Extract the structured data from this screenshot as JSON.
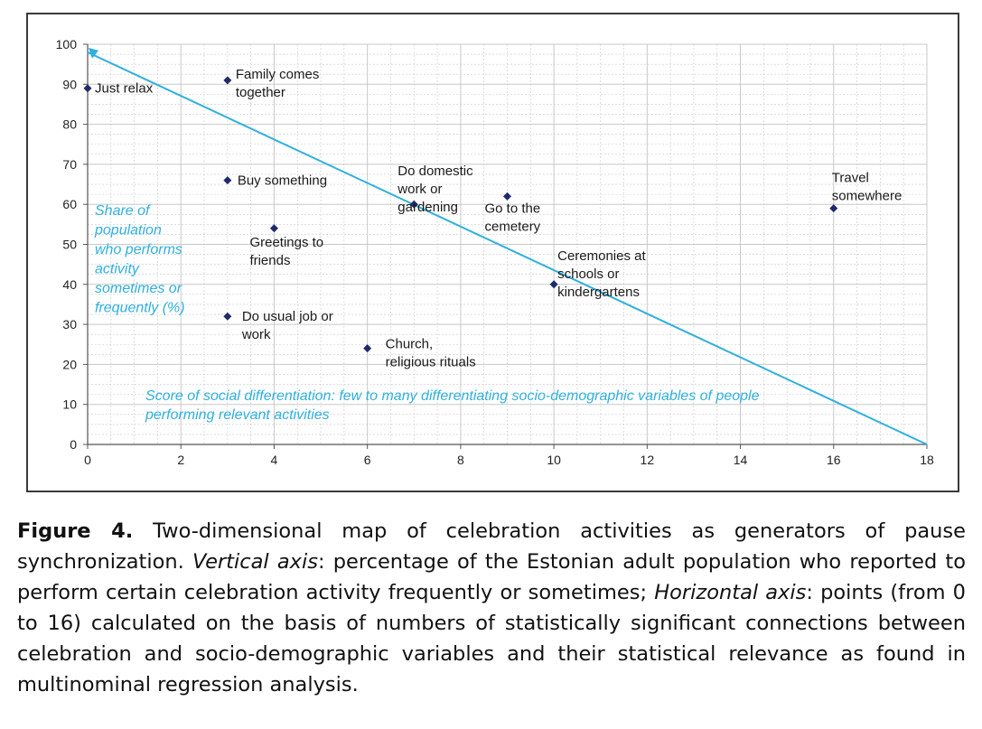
{
  "chart_data": {
    "type": "scatter",
    "x_ticks": [
      "0",
      "2",
      "4",
      "6",
      "8",
      "10",
      "12",
      "14",
      "16",
      "18"
    ],
    "y_ticks": [
      "0",
      "10",
      "20",
      "30",
      "40",
      "50",
      "60",
      "70",
      "80",
      "90",
      "100"
    ],
    "xlim": [
      0,
      18
    ],
    "ylim": [
      0,
      100
    ],
    "grid": true,
    "points": [
      {
        "x": 0,
        "y": 89,
        "label": [
          "Just relax"
        ]
      },
      {
        "x": 3,
        "y": 91,
        "label": [
          "Family comes",
          "together"
        ]
      },
      {
        "x": 3,
        "y": 66,
        "label": [
          "Buy something"
        ]
      },
      {
        "x": 4,
        "y": 54,
        "label": [
          "Greetings to",
          "friends"
        ]
      },
      {
        "x": 3,
        "y": 32,
        "label": [
          "Do usual job or",
          "work"
        ]
      },
      {
        "x": 6,
        "y": 24,
        "label": [
          "Church,",
          "religious rituals"
        ]
      },
      {
        "x": 7,
        "y": 60,
        "label": [
          "Do domestic",
          "work or",
          "gardening"
        ]
      },
      {
        "x": 9,
        "y": 62,
        "label": [
          "Go to the",
          "cemetery"
        ]
      },
      {
        "x": 10,
        "y": 40,
        "label": [
          "Ceremonies at",
          "schools or",
          "kindergartens"
        ]
      },
      {
        "x": 16,
        "y": 59,
        "label": [
          "Travel",
          "somewhere"
        ]
      }
    ],
    "trend_line": {
      "from": [
        0,
        98
      ],
      "to": [
        18,
        0
      ]
    },
    "y_note": [
      "Share of",
      "population",
      "who performs",
      "activity",
      "sometimes or",
      "frequently (%)"
    ],
    "x_note": [
      "Score of social differentiation: few to many differentiating socio-demographic variables of people",
      "performing relevant activities"
    ],
    "colors": {
      "points": "#1f2a6b",
      "trend": "#2fb0de",
      "notes": "#2fb0de",
      "grid": "#c8c8c8"
    }
  },
  "caption": {
    "figure_label": "Figure 4.",
    "part1": " Two-dimensional map of celebration activities as generators of pause synchronization. ",
    "vertical_label": "Vertical axis",
    "part2": ": percentage of the Estonian adult population who reported to perform certain celebration activity frequently or sometimes; ",
    "horizontal_label": "Horizontal axis",
    "part3": ": points (from 0 to 16) calculated on the basis of numbers of statistically significant connections between celebration and socio-demographic variables and their statistical relevance as found in multinominal regression analysis."
  }
}
